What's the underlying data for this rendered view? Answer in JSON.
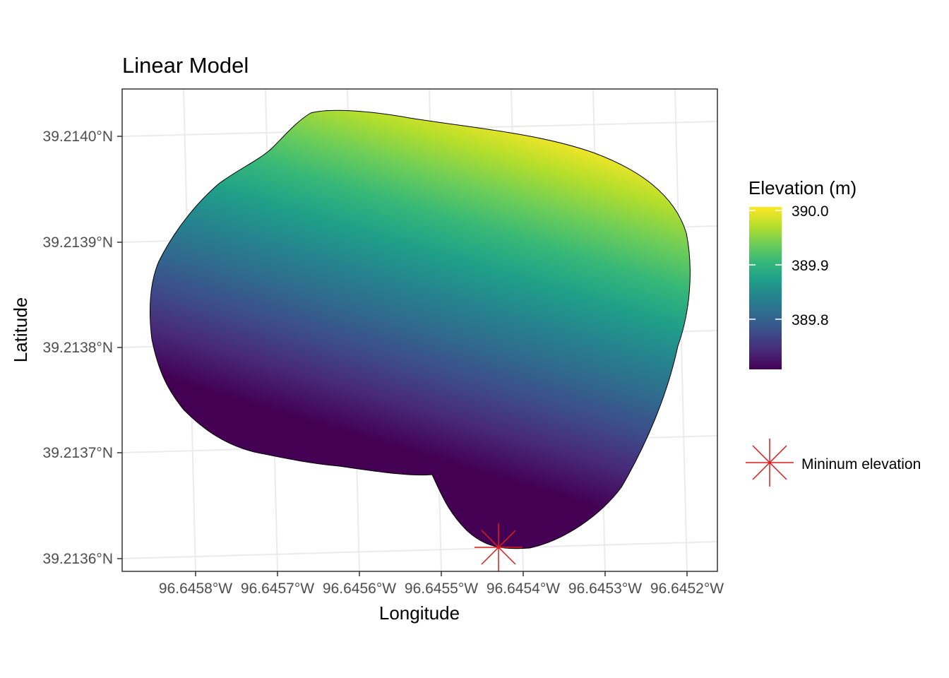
{
  "chart_data": {
    "type": "heatmap",
    "title": "Linear Model",
    "xlabel": "Longitude",
    "ylabel": "Latitude",
    "x_ticks": [
      "96.6458°W",
      "96.6457°W",
      "96.6456°W",
      "96.6455°W",
      "96.6454°W",
      "96.6453°W",
      "96.6452°W"
    ],
    "x_tick_values": [
      -96.6458,
      -96.6457,
      -96.6456,
      -96.6455,
      -96.6454,
      -96.6453,
      -96.6452
    ],
    "y_ticks": [
      "39.2140°N",
      "39.2139°N",
      "39.2138°N",
      "39.2137°N",
      "39.2136°N"
    ],
    "y_tick_values": [
      39.214,
      39.2139,
      39.2138,
      39.2137,
      39.2136
    ],
    "xlim": [
      -96.64587,
      -96.64519
    ],
    "ylim": [
      39.21359,
      39.21404
    ],
    "fill_variable": "Elevation (m)",
    "colorscale": "viridis",
    "fill_range": [
      389.71,
      390.01
    ],
    "fill_gradient": {
      "description": "linear trend surface, increasing toward the north-east",
      "min_location": [
        -96.64543,
        39.21361
      ],
      "max_location": [
        -96.64521,
        39.21398
      ]
    },
    "legend": {
      "title": "Elevation (m)",
      "ticks": [
        "390.0",
        "389.9",
        "389.8"
      ],
      "tick_values": [
        390.0,
        389.9,
        389.8
      ],
      "placement": "right"
    },
    "point_layer": {
      "label": "Mininum elevation",
      "marker": "asterisk",
      "color": "#dd1c1c",
      "location": [
        -96.64543,
        39.21361
      ]
    },
    "grid": true,
    "theme": "bw"
  },
  "colors": {
    "marker": "#dd1c1c",
    "viridis": [
      "#440154",
      "#482878",
      "#3e4a89",
      "#31688e",
      "#26828e",
      "#1f9e89",
      "#35b779",
      "#6dcd59",
      "#b4de2c",
      "#fde725"
    ]
  }
}
